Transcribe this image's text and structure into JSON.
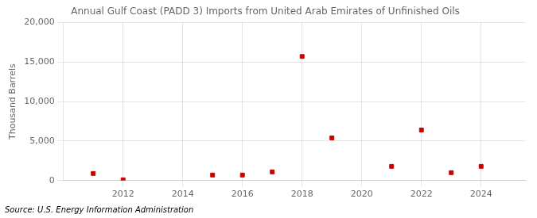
{
  "chart_data": {
    "type": "scatter",
    "title": "Annual Gulf Coast (PADD 3) Imports from United Arab Emirates of Unfinished Oils",
    "ylabel": "Thousand Barrels",
    "source": "Source: U.S. Energy Information Administration",
    "x": [
      2011,
      2012,
      2015,
      2016,
      2017,
      2018,
      2019,
      2021,
      2022,
      2023,
      2024
    ],
    "values": [
      900,
      100,
      700,
      700,
      1100,
      15700,
      5400,
      1800,
      6400,
      1000,
      1800
    ],
    "color": "#cc0000",
    "marker": "square",
    "xlim": [
      2010,
      2025.5
    ],
    "ylim": [
      0,
      20000
    ],
    "xticks": [
      2012,
      2014,
      2016,
      2018,
      2020,
      2022,
      2024
    ],
    "yticks": [
      0,
      {
        "value": 5000,
        "label": "5,000"
      },
      {
        "value": 10000,
        "label": "10,000"
      },
      {
        "value": 15000,
        "label": "15,000"
      },
      {
        "value": 20000,
        "label": "20,000"
      }
    ],
    "grid": true
  }
}
